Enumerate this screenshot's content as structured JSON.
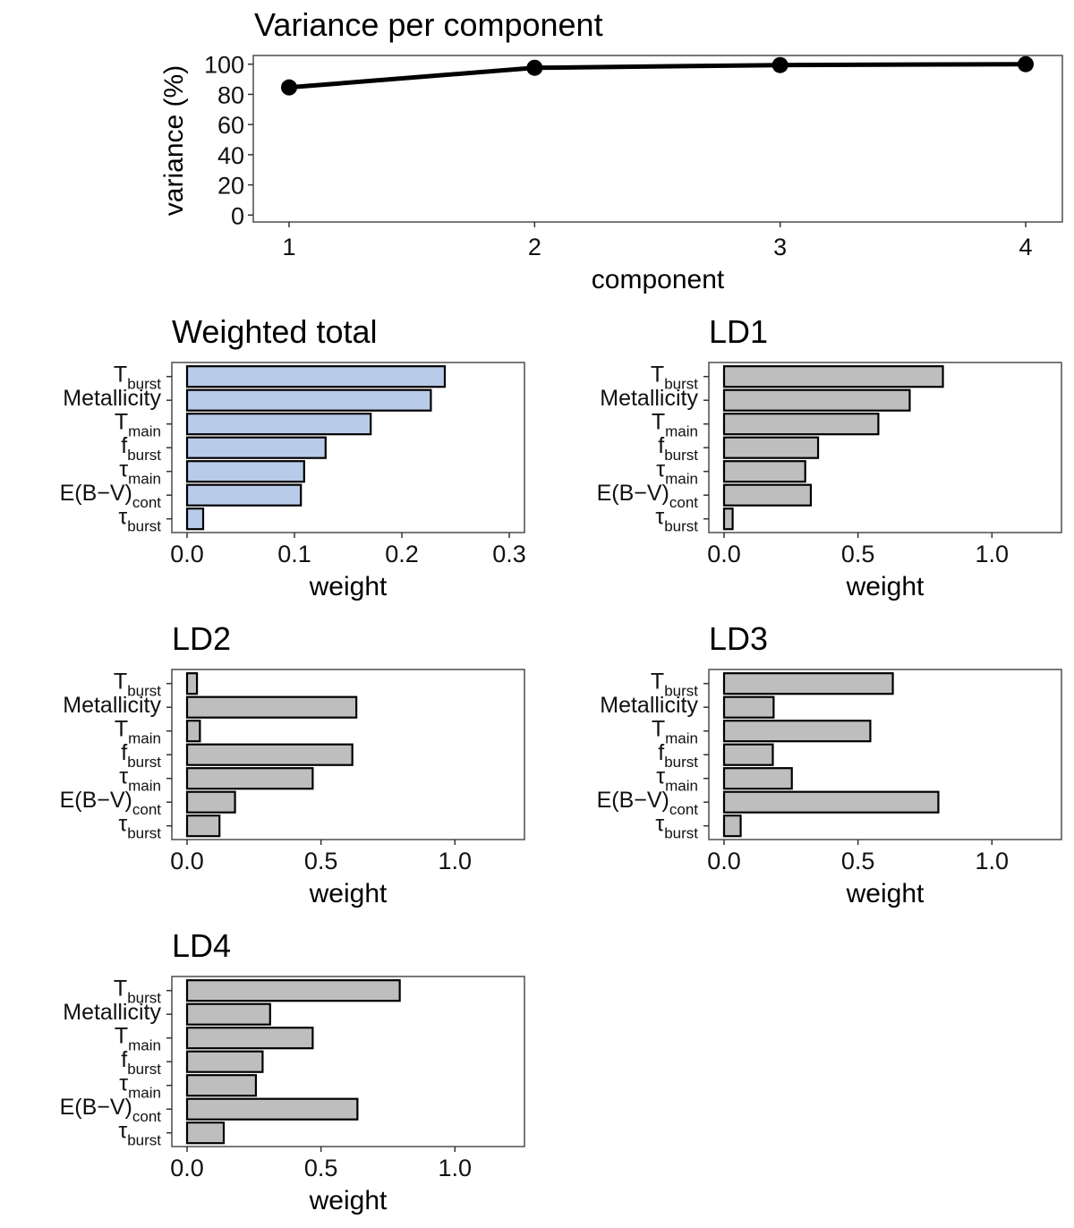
{
  "colors": {
    "weighted_fill": "#b8cbe8",
    "ld_fill": "#bebebe",
    "bar_outline": "#000000",
    "line": "#000000"
  },
  "chart_data": [
    {
      "id": "variance",
      "type": "line",
      "title": "Variance per component",
      "xlabel": "component",
      "ylabel": "variance (%)",
      "x": [
        1,
        2,
        3,
        4
      ],
      "values": [
        84.6,
        97.6,
        99.4,
        100
      ],
      "xlim": [
        0.85,
        4.15
      ],
      "ylim": [
        -3.5,
        107
      ],
      "xticks": [
        "1",
        "2",
        "3",
        "4"
      ],
      "yticks": [
        "0",
        "20",
        "40",
        "60",
        "80",
        "100"
      ],
      "grid": false
    },
    {
      "id": "weighted",
      "type": "bar",
      "orientation": "horizontal",
      "title": "Weighted total",
      "xlabel": "weight",
      "categories": [
        {
          "main": "T",
          "sub": "burst"
        },
        {
          "main": "Metallicity",
          "sub": ""
        },
        {
          "main": "T",
          "sub": "main"
        },
        {
          "main": "f",
          "sub": "burst"
        },
        {
          "main": "τ",
          "sub": "main"
        },
        {
          "main": "E(B−V)",
          "sub": "cont"
        },
        {
          "main": "τ",
          "sub": "burst"
        }
      ],
      "values": [
        0.24,
        0.227,
        0.171,
        0.129,
        0.109,
        0.106,
        0.015
      ],
      "xlim": [
        -0.014,
        0.314
      ],
      "xticks": [
        "0.0",
        "0.1",
        "0.2",
        "0.3"
      ],
      "fill": "weighted"
    },
    {
      "id": "ld1",
      "type": "bar",
      "orientation": "horizontal",
      "title": "LD1",
      "xlabel": "weight",
      "categories": [
        {
          "main": "T",
          "sub": "burst"
        },
        {
          "main": "Metallicity",
          "sub": ""
        },
        {
          "main": "T",
          "sub": "main"
        },
        {
          "main": "f",
          "sub": "burst"
        },
        {
          "main": "τ",
          "sub": "main"
        },
        {
          "main": "E(B−V)",
          "sub": "cont"
        },
        {
          "main": "τ",
          "sub": "burst"
        }
      ],
      "values": [
        0.817,
        0.693,
        0.576,
        0.351,
        0.303,
        0.324,
        0.032
      ],
      "xlim": [
        -0.057,
        1.26
      ],
      "xticks": [
        "0.0",
        "0.5",
        "1.0"
      ],
      "fill": "ld"
    },
    {
      "id": "ld2",
      "type": "bar",
      "orientation": "horizontal",
      "title": "LD2",
      "xlabel": "weight",
      "categories": [
        {
          "main": "T",
          "sub": "burst"
        },
        {
          "main": "Metallicity",
          "sub": ""
        },
        {
          "main": "T",
          "sub": "main"
        },
        {
          "main": "f",
          "sub": "burst"
        },
        {
          "main": "τ",
          "sub": "main"
        },
        {
          "main": "E(B−V)",
          "sub": "cont"
        },
        {
          "main": "τ",
          "sub": "burst"
        }
      ],
      "values": [
        0.037,
        0.632,
        0.048,
        0.617,
        0.469,
        0.179,
        0.121
      ],
      "xlim": [
        -0.057,
        1.26
      ],
      "xticks": [
        "0.0",
        "0.5",
        "1.0"
      ],
      "fill": "ld"
    },
    {
      "id": "ld3",
      "type": "bar",
      "orientation": "horizontal",
      "title": "LD3",
      "xlabel": "weight",
      "categories": [
        {
          "main": "T",
          "sub": "burst"
        },
        {
          "main": "Metallicity",
          "sub": ""
        },
        {
          "main": "T",
          "sub": "main"
        },
        {
          "main": "f",
          "sub": "burst"
        },
        {
          "main": "τ",
          "sub": "main"
        },
        {
          "main": "E(B−V)",
          "sub": "cont"
        },
        {
          "main": "τ",
          "sub": "burst"
        }
      ],
      "values": [
        0.63,
        0.185,
        0.546,
        0.182,
        0.253,
        0.8,
        0.062
      ],
      "xlim": [
        -0.057,
        1.26
      ],
      "xticks": [
        "0.0",
        "0.5",
        "1.0"
      ],
      "fill": "ld"
    },
    {
      "id": "ld4",
      "type": "bar",
      "orientation": "horizontal",
      "title": "LD4",
      "xlabel": "weight",
      "categories": [
        {
          "main": "T",
          "sub": "burst"
        },
        {
          "main": "Metallicity",
          "sub": ""
        },
        {
          "main": "T",
          "sub": "main"
        },
        {
          "main": "f",
          "sub": "burst"
        },
        {
          "main": "τ",
          "sub": "main"
        },
        {
          "main": "E(B−V)",
          "sub": "cont"
        },
        {
          "main": "τ",
          "sub": "burst"
        }
      ],
      "values": [
        0.794,
        0.31,
        0.469,
        0.282,
        0.257,
        0.636,
        0.137
      ],
      "xlim": [
        -0.057,
        1.26
      ],
      "xticks": [
        "0.0",
        "0.5",
        "1.0"
      ],
      "fill": "ld"
    }
  ]
}
